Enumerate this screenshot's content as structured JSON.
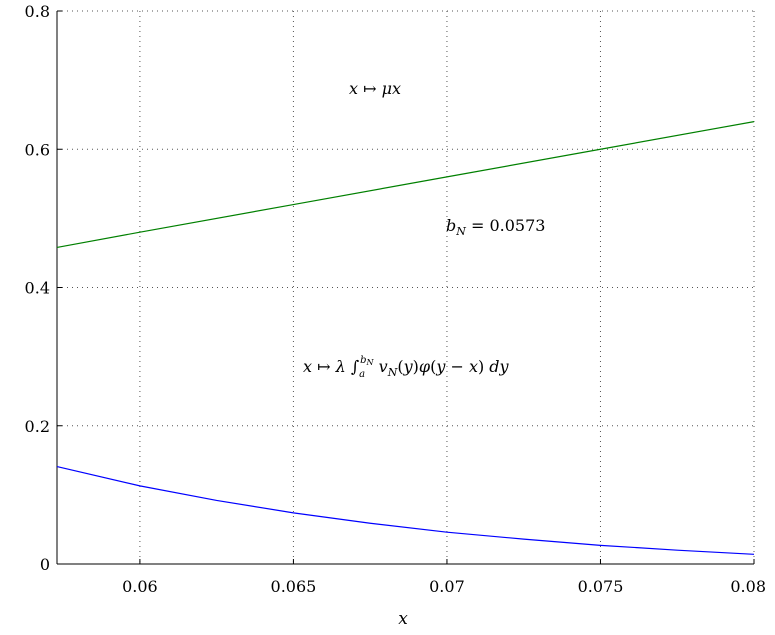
{
  "chart_data": {
    "type": "line",
    "xlabel": "x",
    "ylabel": "",
    "xlim": [
      0.0573,
      0.08
    ],
    "ylim": [
      0,
      0.8
    ],
    "grid": true,
    "x_ticks": [
      0.06,
      0.065,
      0.07,
      0.075,
      0.08
    ],
    "x_tick_labels": [
      "0.06",
      "0.065",
      "0.07",
      "0.075",
      "0.08"
    ],
    "y_ticks": [
      0,
      0.2,
      0.4,
      0.6,
      0.8
    ],
    "y_tick_labels": [
      "0",
      "0.2",
      "0.4",
      "0.6",
      "0.8"
    ],
    "series": [
      {
        "color": "#008000",
        "x": [
          0.0573,
          0.06,
          0.065,
          0.07,
          0.075,
          0.08
        ],
        "y": [
          0.458,
          0.48,
          0.52,
          0.56,
          0.6,
          0.64
        ]
      },
      {
        "color": "#0000ff",
        "x": [
          0.0573,
          0.06,
          0.0625,
          0.065,
          0.0675,
          0.07,
          0.0725,
          0.075,
          0.0775,
          0.08
        ],
        "y": [
          0.141,
          0.113,
          0.092,
          0.074,
          0.059,
          0.046,
          0.036,
          0.027,
          0.02,
          0.014
        ]
      }
    ],
    "annotations": {
      "mu_line": "x ↦ μx",
      "bN": "b_N = 0.0573",
      "integral": "x ↦ λ ∫_a^{b_N} v_N(y)φ(y − x) dy"
    }
  }
}
